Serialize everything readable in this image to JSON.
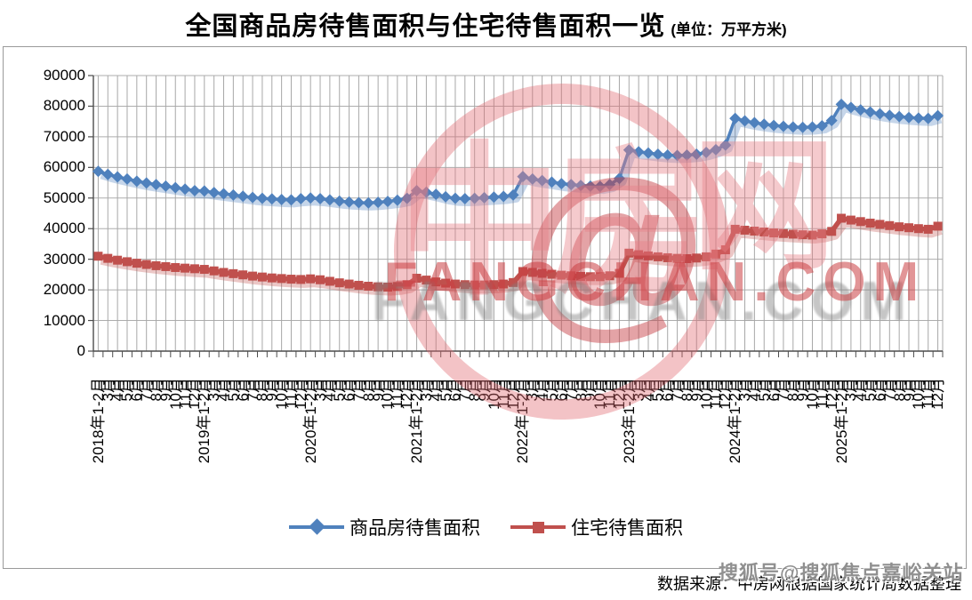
{
  "title": {
    "main": "全国商品房待售面积与住宅待售面积一览",
    "unit": "(单位：万平方米)"
  },
  "source": {
    "text": "数据来源：中房网根据国家统计局数据整理"
  },
  "watermark": {
    "logo_char_1": "中",
    "logo_char_2": "房",
    "logo_char_3": "网",
    "logo_at": "@",
    "logo_site": "FANGCHAN.COM",
    "sohu": "搜狐号@搜狐焦点嘉峪关站"
  },
  "chart_data": {
    "type": "line",
    "title": "全国商品房待售面积与住宅待售面积一览",
    "unit": "万平方米",
    "xlabel": "",
    "ylabel": "",
    "ylim": [
      0,
      90000
    ],
    "ytick_step": 10000,
    "y_ticks": [
      "0",
      "10000",
      "20000",
      "30000",
      "40000",
      "50000",
      "60000",
      "70000",
      "80000",
      "90000"
    ],
    "grid": true,
    "legend_position": "bottom",
    "categories": [
      "2018年1-2月",
      "3月",
      "4月",
      "5月",
      "6月",
      "7月",
      "8月",
      "9月",
      "10月",
      "11月",
      "12月",
      "2019年1-2月",
      "3月",
      "4月",
      "5月",
      "6月",
      "7月",
      "8月",
      "9月",
      "10月",
      "11月",
      "12月",
      "2020年1-2月",
      "3月",
      "4月",
      "5月",
      "6月",
      "7月",
      "8月",
      "9月",
      "10月",
      "11月",
      "12月",
      "2021年1-2月",
      "3月",
      "4月",
      "5月",
      "6月",
      "7月",
      "8月",
      "9月",
      "10月",
      "11月",
      "12月",
      "2022年1-2月",
      "3月",
      "4月",
      "5月",
      "6月",
      "7月",
      "8月",
      "9月",
      "10月",
      "11月",
      "12月",
      "2023年1-2月",
      "3月",
      "4月",
      "5月",
      "6月",
      "7月",
      "8月",
      "9月",
      "10月",
      "11月",
      "12月",
      "2024年1-2月",
      "3月",
      "4月",
      "5月",
      "6月",
      "7月",
      "8月",
      "9月",
      "10月",
      "11月",
      "12月",
      "2025年1-2月",
      "3月",
      "4月",
      "5月",
      "6月",
      "7月",
      "8月",
      "9月",
      "10月",
      "11月",
      "12月"
    ],
    "series": [
      {
        "name": "商品房待售面积",
        "color": "#4F81BD",
        "marker": "diamond",
        "values": [
          58700,
          57700,
          56900,
          56200,
          55500,
          54900,
          54400,
          53900,
          53400,
          52900,
          52400,
          52300,
          51800,
          51400,
          51000,
          50600,
          50200,
          49900,
          49700,
          49500,
          49400,
          49800,
          50000,
          49800,
          49400,
          49000,
          48700,
          48500,
          48400,
          48600,
          48900,
          49300,
          49900,
          52400,
          51900,
          51200,
          50400,
          49900,
          49800,
          49900,
          50100,
          50300,
          50500,
          51000,
          57000,
          56200,
          55700,
          55200,
          54700,
          54400,
          54100,
          53900,
          53800,
          54400,
          56400,
          65700,
          65100,
          64700,
          64300,
          64000,
          63900,
          64000,
          64300,
          64900,
          65800,
          67300,
          76000,
          75200,
          74600,
          74100,
          73700,
          73400,
          73200,
          73100,
          73200,
          73600,
          75300,
          80600,
          79600,
          78800,
          78100,
          77500,
          77000,
          76600,
          76300,
          76100,
          76000,
          76900
        ]
      },
      {
        "name": "住宅待售面积",
        "color": "#C0504D",
        "marker": "square",
        "values": [
          31000,
          30300,
          29700,
          29200,
          28700,
          28300,
          27900,
          27600,
          27300,
          27100,
          26900,
          26700,
          26200,
          25700,
          25300,
          24900,
          24500,
          24200,
          23900,
          23700,
          23500,
          23400,
          23600,
          23300,
          22800,
          22300,
          21900,
          21500,
          21200,
          21000,
          20900,
          21100,
          21700,
          23800,
          23200,
          22600,
          22200,
          21900,
          21700,
          21600,
          21600,
          21700,
          21900,
          22400,
          26000,
          25700,
          25400,
          25100,
          24800,
          24600,
          24400,
          24300,
          24300,
          24600,
          25400,
          32000,
          31500,
          31100,
          30800,
          30500,
          30300,
          30200,
          30400,
          30800,
          31700,
          33100,
          39800,
          39500,
          39200,
          38900,
          38600,
          38400,
          38200,
          38000,
          37900,
          38300,
          39100,
          43400,
          42800,
          42300,
          41800,
          41400,
          41000,
          40600,
          40300,
          40000,
          39800,
          40800
        ]
      }
    ]
  }
}
